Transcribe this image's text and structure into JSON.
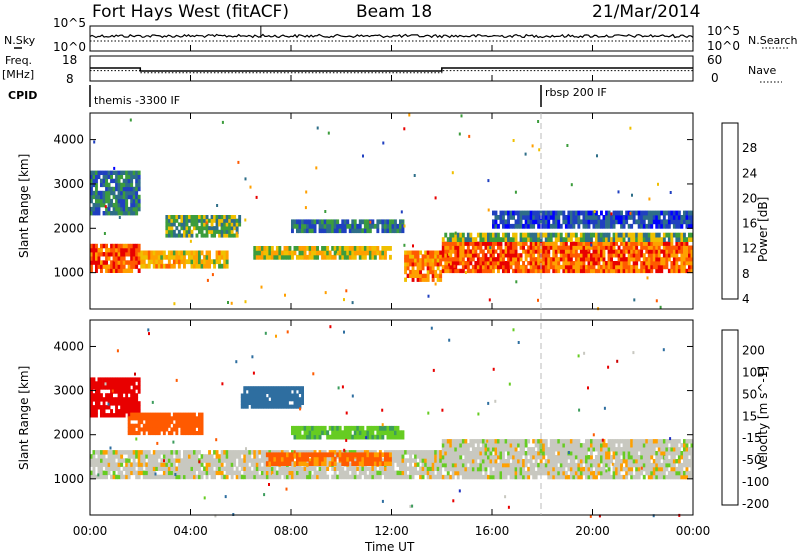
{
  "header": {
    "station": "Fort Hays West (fitACF)",
    "beam": "Beam 18",
    "date": "21/Mar/2014"
  },
  "side_labels": {
    "nsky": "N.Sky",
    "freq": "Freq.",
    "freq_unit": "[MHz]",
    "cpid": "CPID",
    "nsearch": "N.Search",
    "nave": "Nave"
  },
  "cpid_labels": [
    "themis -3300 IF",
    "rbsp 200 IF"
  ],
  "colors": {
    "frame": "#000000",
    "noise_gray": "#c8c8c0",
    "marker_dash": "#bbbbbb"
  },
  "chart_data": [
    {
      "type": "line",
      "name": "noise",
      "ytick_labels_left": [
        "10^5",
        "10^0"
      ],
      "ytick_labels_right": [
        "10^5",
        "10^0"
      ],
      "x_range_hours": [
        0,
        24
      ]
    },
    {
      "type": "line",
      "name": "frequency-nave",
      "ytick_labels_left": [
        "18",
        "8"
      ],
      "ytick_labels_right": [
        "60",
        "0"
      ],
      "ylim_left": [
        8,
        18
      ],
      "ylim_right": [
        0,
        60
      ],
      "freq_segments": [
        {
          "start": 0.0,
          "end": 2.0,
          "value": 13.2
        },
        {
          "start": 2.0,
          "end": 14.0,
          "value": 12.0
        },
        {
          "start": 14.0,
          "end": 24.0,
          "value": 13.2
        }
      ],
      "nave_segments": [
        {
          "start": 0.0,
          "end": 2.0,
          "value": 25
        },
        {
          "start": 2.0,
          "end": 14.0,
          "value": 20
        },
        {
          "start": 14.0,
          "end": 24.0,
          "value": 25
        }
      ]
    },
    {
      "type": "heatmap",
      "name": "power",
      "ylabel": "Slant Range [km]",
      "yticks": [
        1000,
        2000,
        3000,
        4000
      ],
      "ylim": [
        180,
        4600
      ],
      "xlim_hours": [
        0,
        24
      ],
      "colorbar": {
        "label": "Power [dB]",
        "tick_labels": [
          "28",
          "24",
          "20",
          "16",
          "12",
          "8",
          "4"
        ],
        "colors": [
          "#e80000",
          "#ff5a00",
          "#ffa000",
          "#f0c000",
          "#3c9c3c",
          "#2e6e88",
          "#2040c0",
          "#0000ff"
        ]
      },
      "regions": [
        {
          "t0": 0.0,
          "t1": 2.0,
          "r0": 1000,
          "r1": 1650,
          "intensity": 25
        },
        {
          "t0": 2.0,
          "t1": 5.5,
          "r0": 1100,
          "r1": 1500,
          "intensity": 18
        },
        {
          "t0": 3.0,
          "t1": 6.0,
          "r0": 1800,
          "r1": 2300,
          "intensity": 12
        },
        {
          "t0": 0.0,
          "t1": 2.0,
          "r0": 2300,
          "r1": 3300,
          "intensity": 8
        },
        {
          "t0": 6.5,
          "t1": 12.0,
          "r0": 1300,
          "r1": 1600,
          "intensity": 16
        },
        {
          "t0": 8.0,
          "t1": 12.5,
          "r0": 1900,
          "r1": 2200,
          "intensity": 8
        },
        {
          "t0": 12.5,
          "t1": 14.0,
          "r0": 800,
          "r1": 1500,
          "intensity": 22
        },
        {
          "t0": 14.0,
          "t1": 24.0,
          "r0": 1000,
          "r1": 1700,
          "intensity": 24
        },
        {
          "t0": 14.0,
          "t1": 24.0,
          "r0": 1700,
          "r1": 1900,
          "intensity": 12
        },
        {
          "t0": 16.0,
          "t1": 24.0,
          "r0": 2000,
          "r1": 2400,
          "intensity": 5
        }
      ]
    },
    {
      "type": "heatmap",
      "name": "velocity",
      "xlabel": "Time UT",
      "ylabel": "Slant Range [km]",
      "yticks": [
        1000,
        2000,
        3000,
        4000
      ],
      "ylim": [
        180,
        4600
      ],
      "xlim_hours": [
        0,
        24
      ],
      "xtick_labels": [
        "00:00",
        "04:00",
        "08:00",
        "12:00",
        "16:00",
        "20:00",
        "00:00"
      ],
      "colorbar": {
        "label": "Velocity [m s^-1]",
        "tick_labels": [
          "200",
          "100",
          "50",
          "15",
          "-15",
          "-50",
          "-100",
          "-200"
        ],
        "colors": [
          "#2030c0",
          "#2e6ea0",
          "#3c9c5c",
          "#66cc22",
          "#c8c8c0",
          "#ffa000",
          "#ff5a00",
          "#e80000",
          "#cc0000"
        ]
      },
      "regions": [
        {
          "t0": 0.0,
          "t1": 14.0,
          "r0": 1000,
          "r1": 1650,
          "velocity": 0
        },
        {
          "t0": 14.0,
          "t1": 24.0,
          "r0": 1000,
          "r1": 1900,
          "velocity": 0
        },
        {
          "t0": 0.0,
          "t1": 2.0,
          "r0": 2400,
          "r1": 3300,
          "velocity": -180
        },
        {
          "t0": 1.5,
          "t1": 4.5,
          "r0": 2000,
          "r1": 2500,
          "velocity": -80
        },
        {
          "t0": 6.0,
          "t1": 8.5,
          "r0": 2600,
          "r1": 3100,
          "velocity": 180
        },
        {
          "t0": 7.0,
          "t1": 12.0,
          "r0": 1300,
          "r1": 1600,
          "velocity": -60
        },
        {
          "t0": 8.0,
          "t1": 12.5,
          "r0": 1900,
          "r1": 2200,
          "velocity": 40
        }
      ]
    }
  ]
}
